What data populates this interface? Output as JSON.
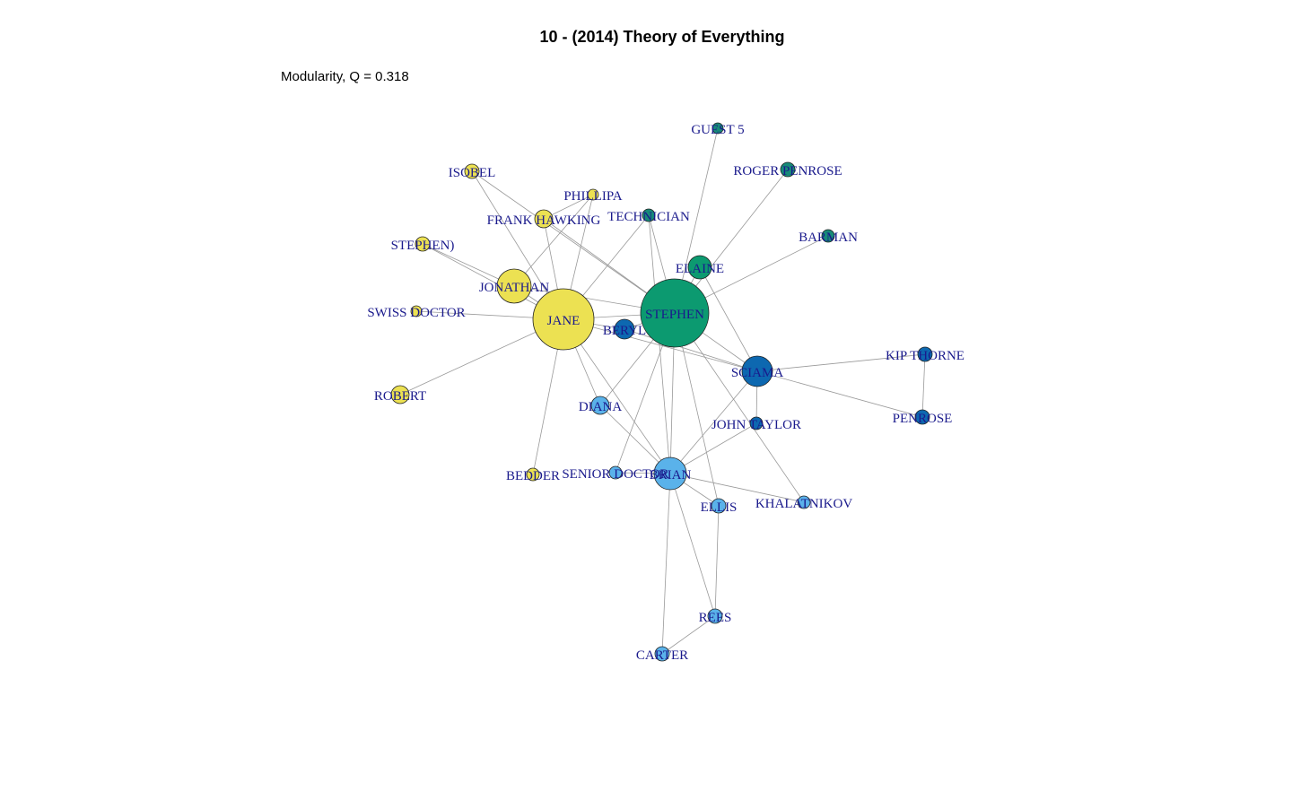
{
  "title": "10 - (2014) Theory of Everything",
  "subtitle": "Modularity, Q = 0.318",
  "nodes": [
    {
      "label": "GUEST 5"
    },
    {
      "label": "ROGER PENROSE"
    },
    {
      "label": "BARMAN"
    },
    {
      "label": "TECHNICIAN"
    },
    {
      "label": "ELAINE"
    },
    {
      "label": "STEPHEN"
    },
    {
      "label": "ISOBEL"
    },
    {
      "label": "PHILLIPA"
    },
    {
      "label": "FRANK HAWKING"
    },
    {
      "label": "STEPHEN)"
    },
    {
      "label": "JONATHAN"
    },
    {
      "label": "SWISS DOCTOR"
    },
    {
      "label": "JANE"
    },
    {
      "label": "ROBERT"
    },
    {
      "label": "BERYL"
    },
    {
      "label": "SCIAMA"
    },
    {
      "label": "KIP THORNE"
    },
    {
      "label": "PENROSE"
    },
    {
      "label": "JOHN TAYLOR"
    },
    {
      "label": "DIANA"
    },
    {
      "label": "BEDDER"
    },
    {
      "label": "SENIOR DOCTOR"
    },
    {
      "label": "BRIAN"
    },
    {
      "label": "ELLIS"
    },
    {
      "label": "KHALATNIKOV"
    },
    {
      "label": "REES"
    },
    {
      "label": "CARTER"
    }
  ]
}
